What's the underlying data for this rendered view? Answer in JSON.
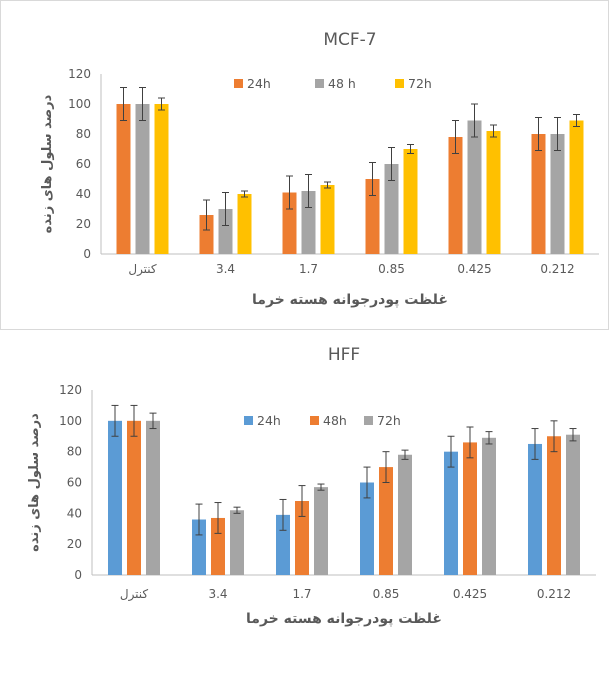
{
  "chart_data": [
    {
      "type": "bar",
      "title": "MCF-7",
      "xlabel": "غلظت پودرجوانه هسته خرما",
      "ylabel": "درصد سلول های زنده",
      "categories": [
        "کنترل",
        "3.4",
        "1.7",
        "0.85",
        "0.425",
        "0.212"
      ],
      "ylim": [
        0,
        120
      ],
      "yticks": [
        0,
        20,
        40,
        60,
        80,
        100,
        120
      ],
      "legend": "top",
      "grid": false,
      "series": [
        {
          "name": "24h",
          "color": "#ED7D31",
          "values": [
            100,
            26,
            41,
            50,
            78,
            80
          ],
          "errors": [
            11,
            10,
            11,
            11,
            11,
            11
          ]
        },
        {
          "name": "48 h",
          "color": "#A5A5A5",
          "values": [
            100,
            30,
            42,
            60,
            89,
            80
          ],
          "errors": [
            11,
            11,
            11,
            11,
            11,
            11
          ]
        },
        {
          "name": "72h",
          "color": "#FFC000",
          "values": [
            100,
            40,
            46,
            70,
            82,
            89
          ],
          "errors": [
            4,
            2,
            2,
            3,
            4,
            4
          ]
        }
      ]
    },
    {
      "type": "bar",
      "title": "HFF",
      "xlabel": "غلظت پودرجوانه هسته خرما",
      "ylabel": "درصد سلول های زنده",
      "categories": [
        "کنترل",
        "3.4",
        "1.7",
        "0.85",
        "0.425",
        "0.212"
      ],
      "ylim": [
        0,
        120
      ],
      "yticks": [
        0,
        20,
        40,
        60,
        80,
        100,
        120
      ],
      "legend": "top",
      "grid": false,
      "series": [
        {
          "name": "24h",
          "color": "#5B9BD5",
          "values": [
            100,
            36,
            39,
            60,
            80,
            85
          ],
          "errors": [
            10,
            10,
            10,
            10,
            10,
            10
          ]
        },
        {
          "name": "48h",
          "color": "#ED7D31",
          "values": [
            100,
            37,
            48,
            70,
            86,
            90
          ],
          "errors": [
            10,
            10,
            10,
            10,
            10,
            10
          ]
        },
        {
          "name": "72h",
          "color": "#A5A5A5",
          "values": [
            100,
            42,
            57,
            78,
            89,
            91
          ],
          "errors": [
            5,
            2,
            2,
            3,
            4,
            4
          ]
        }
      ]
    }
  ]
}
